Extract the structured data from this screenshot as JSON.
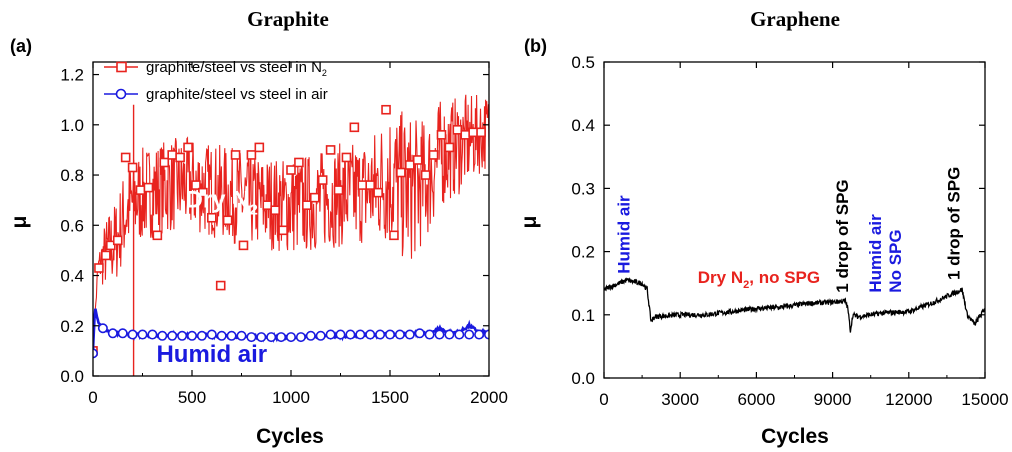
{
  "chart_data": [
    {
      "panel_label": "(a)",
      "title": "Graphite",
      "type": "line",
      "xlabel": "Cycles",
      "ylabel": "μ",
      "xlim": [
        0,
        2000
      ],
      "ylim": [
        0,
        1.25
      ],
      "x_ticks": [
        "0",
        "500",
        "1000",
        "1500",
        "2000"
      ],
      "y_ticks": [
        "0.0",
        "0.2",
        "0.4",
        "0.6",
        "0.8",
        "1.0",
        "1.2"
      ],
      "legend_position": "top-left",
      "series": [
        {
          "name_main": "graphite/steel vs steel in N",
          "name_sub": "2",
          "color": "#e8231e",
          "marker": "square",
          "x": [
            0,
            25,
            50,
            75,
            100,
            125,
            150,
            175,
            200,
            250,
            300,
            350,
            400,
            450,
            500,
            550,
            600,
            650,
            700,
            750,
            800,
            850,
            900,
            950,
            1000,
            1050,
            1100,
            1150,
            1200,
            1250,
            1300,
            1350,
            1400,
            1450,
            1500,
            1550,
            1600,
            1650,
            1700,
            1750,
            1800,
            1850,
            1900,
            1950,
            2000
          ],
          "y": [
            0.1,
            0.43,
            0.47,
            0.5,
            0.52,
            0.55,
            0.62,
            0.66,
            0.69,
            0.72,
            0.74,
            0.75,
            0.76,
            0.76,
            0.76,
            0.75,
            0.74,
            0.73,
            0.72,
            0.71,
            0.7,
            0.69,
            0.69,
            0.68,
            0.68,
            0.68,
            0.69,
            0.7,
            0.71,
            0.72,
            0.72,
            0.73,
            0.74,
            0.77,
            0.8,
            0.76,
            0.74,
            0.76,
            0.8,
            0.88,
            0.9,
            0.92,
            0.94,
            0.96,
            0.98
          ],
          "band": [
            0.02,
            0.05,
            0.12,
            0.15,
            0.16,
            0.17,
            0.18,
            0.18,
            0.19,
            0.19,
            0.19,
            0.19,
            0.19,
            0.19,
            0.19,
            0.19,
            0.19,
            0.19,
            0.19,
            0.19,
            0.19,
            0.19,
            0.19,
            0.19,
            0.2,
            0.2,
            0.2,
            0.2,
            0.2,
            0.21,
            0.21,
            0.21,
            0.22,
            0.25,
            0.28,
            0.3,
            0.3,
            0.26,
            0.24,
            0.22,
            0.2,
            0.2,
            0.18,
            0.16,
            0.15
          ],
          "marker_x": [
            0,
            30,
            65,
            90,
            125,
            165,
            200,
            240,
            280,
            325,
            360,
            400,
            440,
            480,
            520,
            555,
            600,
            645,
            680,
            720,
            760,
            800,
            840,
            880,
            920,
            960,
            1000,
            1040,
            1080,
            1120,
            1160,
            1200,
            1240,
            1280,
            1320,
            1360,
            1400,
            1440,
            1480,
            1520,
            1555,
            1600,
            1640,
            1680,
            1720,
            1760,
            1800,
            1840,
            1880,
            1920,
            1960
          ],
          "marker_y": [
            0.1,
            0.43,
            0.48,
            0.52,
            0.54,
            0.87,
            0.83,
            0.74,
            0.75,
            0.56,
            0.85,
            0.88,
            0.87,
            0.91,
            0.76,
            0.73,
            0.63,
            0.36,
            0.62,
            0.88,
            0.52,
            0.88,
            0.91,
            0.68,
            0.66,
            0.58,
            0.82,
            0.85,
            0.68,
            0.71,
            0.78,
            0.9,
            0.74,
            0.87,
            0.99,
            0.76,
            0.76,
            0.73,
            1.06,
            0.56,
            0.81,
            0.84,
            0.86,
            0.8,
            0.88,
            0.96,
            0.91,
            0.98,
            0.96,
            0.97,
            0.97
          ],
          "spike_x": 205,
          "spike_y": [
            0.0,
            1.08
          ]
        },
        {
          "name": "graphite/steel vs steel in air",
          "color": "#1a1adf",
          "marker": "circle",
          "x": [
            0,
            10,
            25,
            50,
            75,
            100,
            150,
            200,
            300,
            400,
            500,
            600,
            700,
            800,
            900,
            1000,
            1100,
            1200,
            1300,
            1400,
            1500,
            1600,
            1700,
            1750,
            1800,
            1850,
            1900,
            1950,
            2000
          ],
          "y": [
            0.1,
            0.28,
            0.22,
            0.19,
            0.18,
            0.17,
            0.168,
            0.165,
            0.163,
            0.162,
            0.16,
            0.16,
            0.158,
            0.156,
            0.155,
            0.155,
            0.156,
            0.158,
            0.16,
            0.162,
            0.165,
            0.167,
            0.17,
            0.19,
            0.172,
            0.175,
            0.2,
            0.175,
            0.175
          ],
          "marker_x": [
            0,
            50,
            100,
            150,
            200,
            250,
            300,
            350,
            400,
            450,
            500,
            550,
            600,
            650,
            700,
            750,
            800,
            850,
            900,
            950,
            1000,
            1050,
            1100,
            1150,
            1200,
            1250,
            1300,
            1350,
            1400,
            1450,
            1500,
            1550,
            1600,
            1650,
            1700,
            1750,
            1800,
            1850,
            1900,
            1950,
            2000
          ],
          "marker_y": [
            0.09,
            0.19,
            0.17,
            0.17,
            0.165,
            0.165,
            0.165,
            0.16,
            0.16,
            0.16,
            0.16,
            0.16,
            0.165,
            0.16,
            0.16,
            0.16,
            0.155,
            0.155,
            0.155,
            0.155,
            0.155,
            0.155,
            0.16,
            0.16,
            0.165,
            0.165,
            0.165,
            0.165,
            0.165,
            0.165,
            0.165,
            0.165,
            0.165,
            0.17,
            0.165,
            0.165,
            0.165,
            0.165,
            0.165,
            0.165,
            0.165
          ]
        }
      ],
      "annotations": [
        {
          "main": "Dry N",
          "sub": "2",
          "color": "#ffffff",
          "x": 650,
          "y": 0.67
        },
        {
          "main": "Humid air",
          "sub": "",
          "color": "#1a1adf",
          "x": 600,
          "y": 0.055
        }
      ]
    },
    {
      "panel_label": "(b)",
      "title": "Graphene",
      "type": "line",
      "xlabel": "Cycles",
      "ylabel": "μ",
      "xlim": [
        0,
        15000
      ],
      "ylim": [
        0,
        0.5
      ],
      "x_ticks": [
        "0",
        "3000",
        "6000",
        "9000",
        "12000",
        "15000"
      ],
      "y_ticks": [
        "0.0",
        "0.1",
        "0.2",
        "0.3",
        "0.4",
        "0.5"
      ],
      "series": [
        {
          "color": "#000000",
          "x": [
            0,
            300,
            600,
            900,
            1200,
            1500,
            1700,
            1850,
            2000,
            2300,
            3000,
            4000,
            5000,
            6000,
            7000,
            8000,
            9000,
            9500,
            9600,
            9700,
            9800,
            10000,
            10500,
            11000,
            12000,
            13000,
            13800,
            14100,
            14300,
            14600,
            15000
          ],
          "y": [
            0.14,
            0.145,
            0.15,
            0.155,
            0.152,
            0.15,
            0.14,
            0.09,
            0.097,
            0.098,
            0.1,
            0.1,
            0.105,
            0.11,
            0.112,
            0.118,
            0.12,
            0.122,
            0.11,
            0.075,
            0.1,
            0.097,
            0.1,
            0.103,
            0.105,
            0.12,
            0.135,
            0.14,
            0.1,
            0.085,
            0.11
          ],
          "noise": 0.004
        }
      ],
      "annotations": [
        {
          "main": "Humid air",
          "color": "#1a1adf",
          "x": 1000,
          "y": 0.165,
          "rotate": true
        },
        {
          "main": "Dry N",
          "sub": "2",
          "tail": ", no SPG",
          "color": "#e8231e",
          "x": 6100,
          "y": 0.15,
          "rotate": false
        },
        {
          "main": "1 drop of SPG",
          "color": "#000000",
          "x": 9600,
          "y": 0.135,
          "rotate": true
        },
        {
          "main": "Humid air",
          "color": "#1a1adf",
          "x": 10900,
          "y": 0.135,
          "rotate": true
        },
        {
          "main": "No SPG",
          "color": "#1a1adf",
          "x": 11700,
          "y": 0.135,
          "rotate": true
        },
        {
          "main": "1 drop of SPG",
          "color": "#000000",
          "x": 14000,
          "y": 0.155,
          "rotate": true
        }
      ]
    }
  ]
}
